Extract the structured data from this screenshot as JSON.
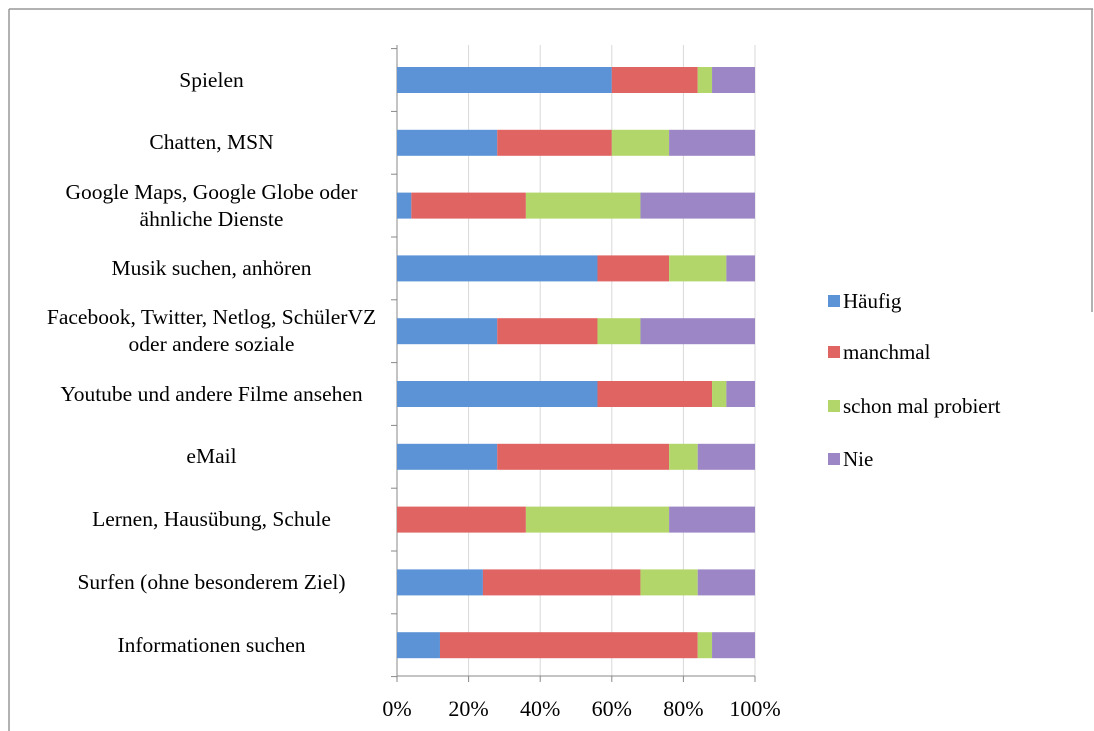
{
  "chart_data": {
    "type": "stacked-bar-horizontal",
    "categories": [
      "Spielen",
      "Chatten, MSN",
      "Google Maps, Google Globe oder ähnliche Dienste",
      "Musik suchen, anhören",
      "Facebook, Twitter, Netlog, SchülerVZ oder andere soziale",
      "Youtube und andere Filme ansehen",
      "eMail",
      "Lernen, Hausübung, Schule",
      "Surfen (ohne besonderem Ziel)",
      "Informationen suchen"
    ],
    "series": [
      {
        "name": "Häufig",
        "color": "#5b93d6",
        "values": [
          60,
          28,
          4,
          56,
          28,
          56,
          28,
          0,
          24,
          12
        ]
      },
      {
        "name": "manchmal",
        "color": "#e06462",
        "values": [
          24,
          32,
          32,
          20,
          28,
          32,
          48,
          36,
          44,
          72
        ]
      },
      {
        "name": "schon mal probiert",
        "color": "#b3d66a",
        "values": [
          4,
          16,
          32,
          16,
          12,
          4,
          8,
          40,
          16,
          4
        ]
      },
      {
        "name": "Nie",
        "color": "#9c86c6",
        "values": [
          12,
          24,
          32,
          8,
          32,
          8,
          16,
          24,
          16,
          12
        ]
      }
    ],
    "xlim": [
      0,
      100
    ],
    "xticks": [
      {
        "value": 0,
        "label": "0%"
      },
      {
        "value": 20,
        "label": "20%"
      },
      {
        "value": 40,
        "label": "40%"
      },
      {
        "value": 60,
        "label": "60%"
      },
      {
        "value": 80,
        "label": "80%"
      },
      {
        "value": 100,
        "label": "100%"
      }
    ],
    "grid": true,
    "legend": "right"
  }
}
